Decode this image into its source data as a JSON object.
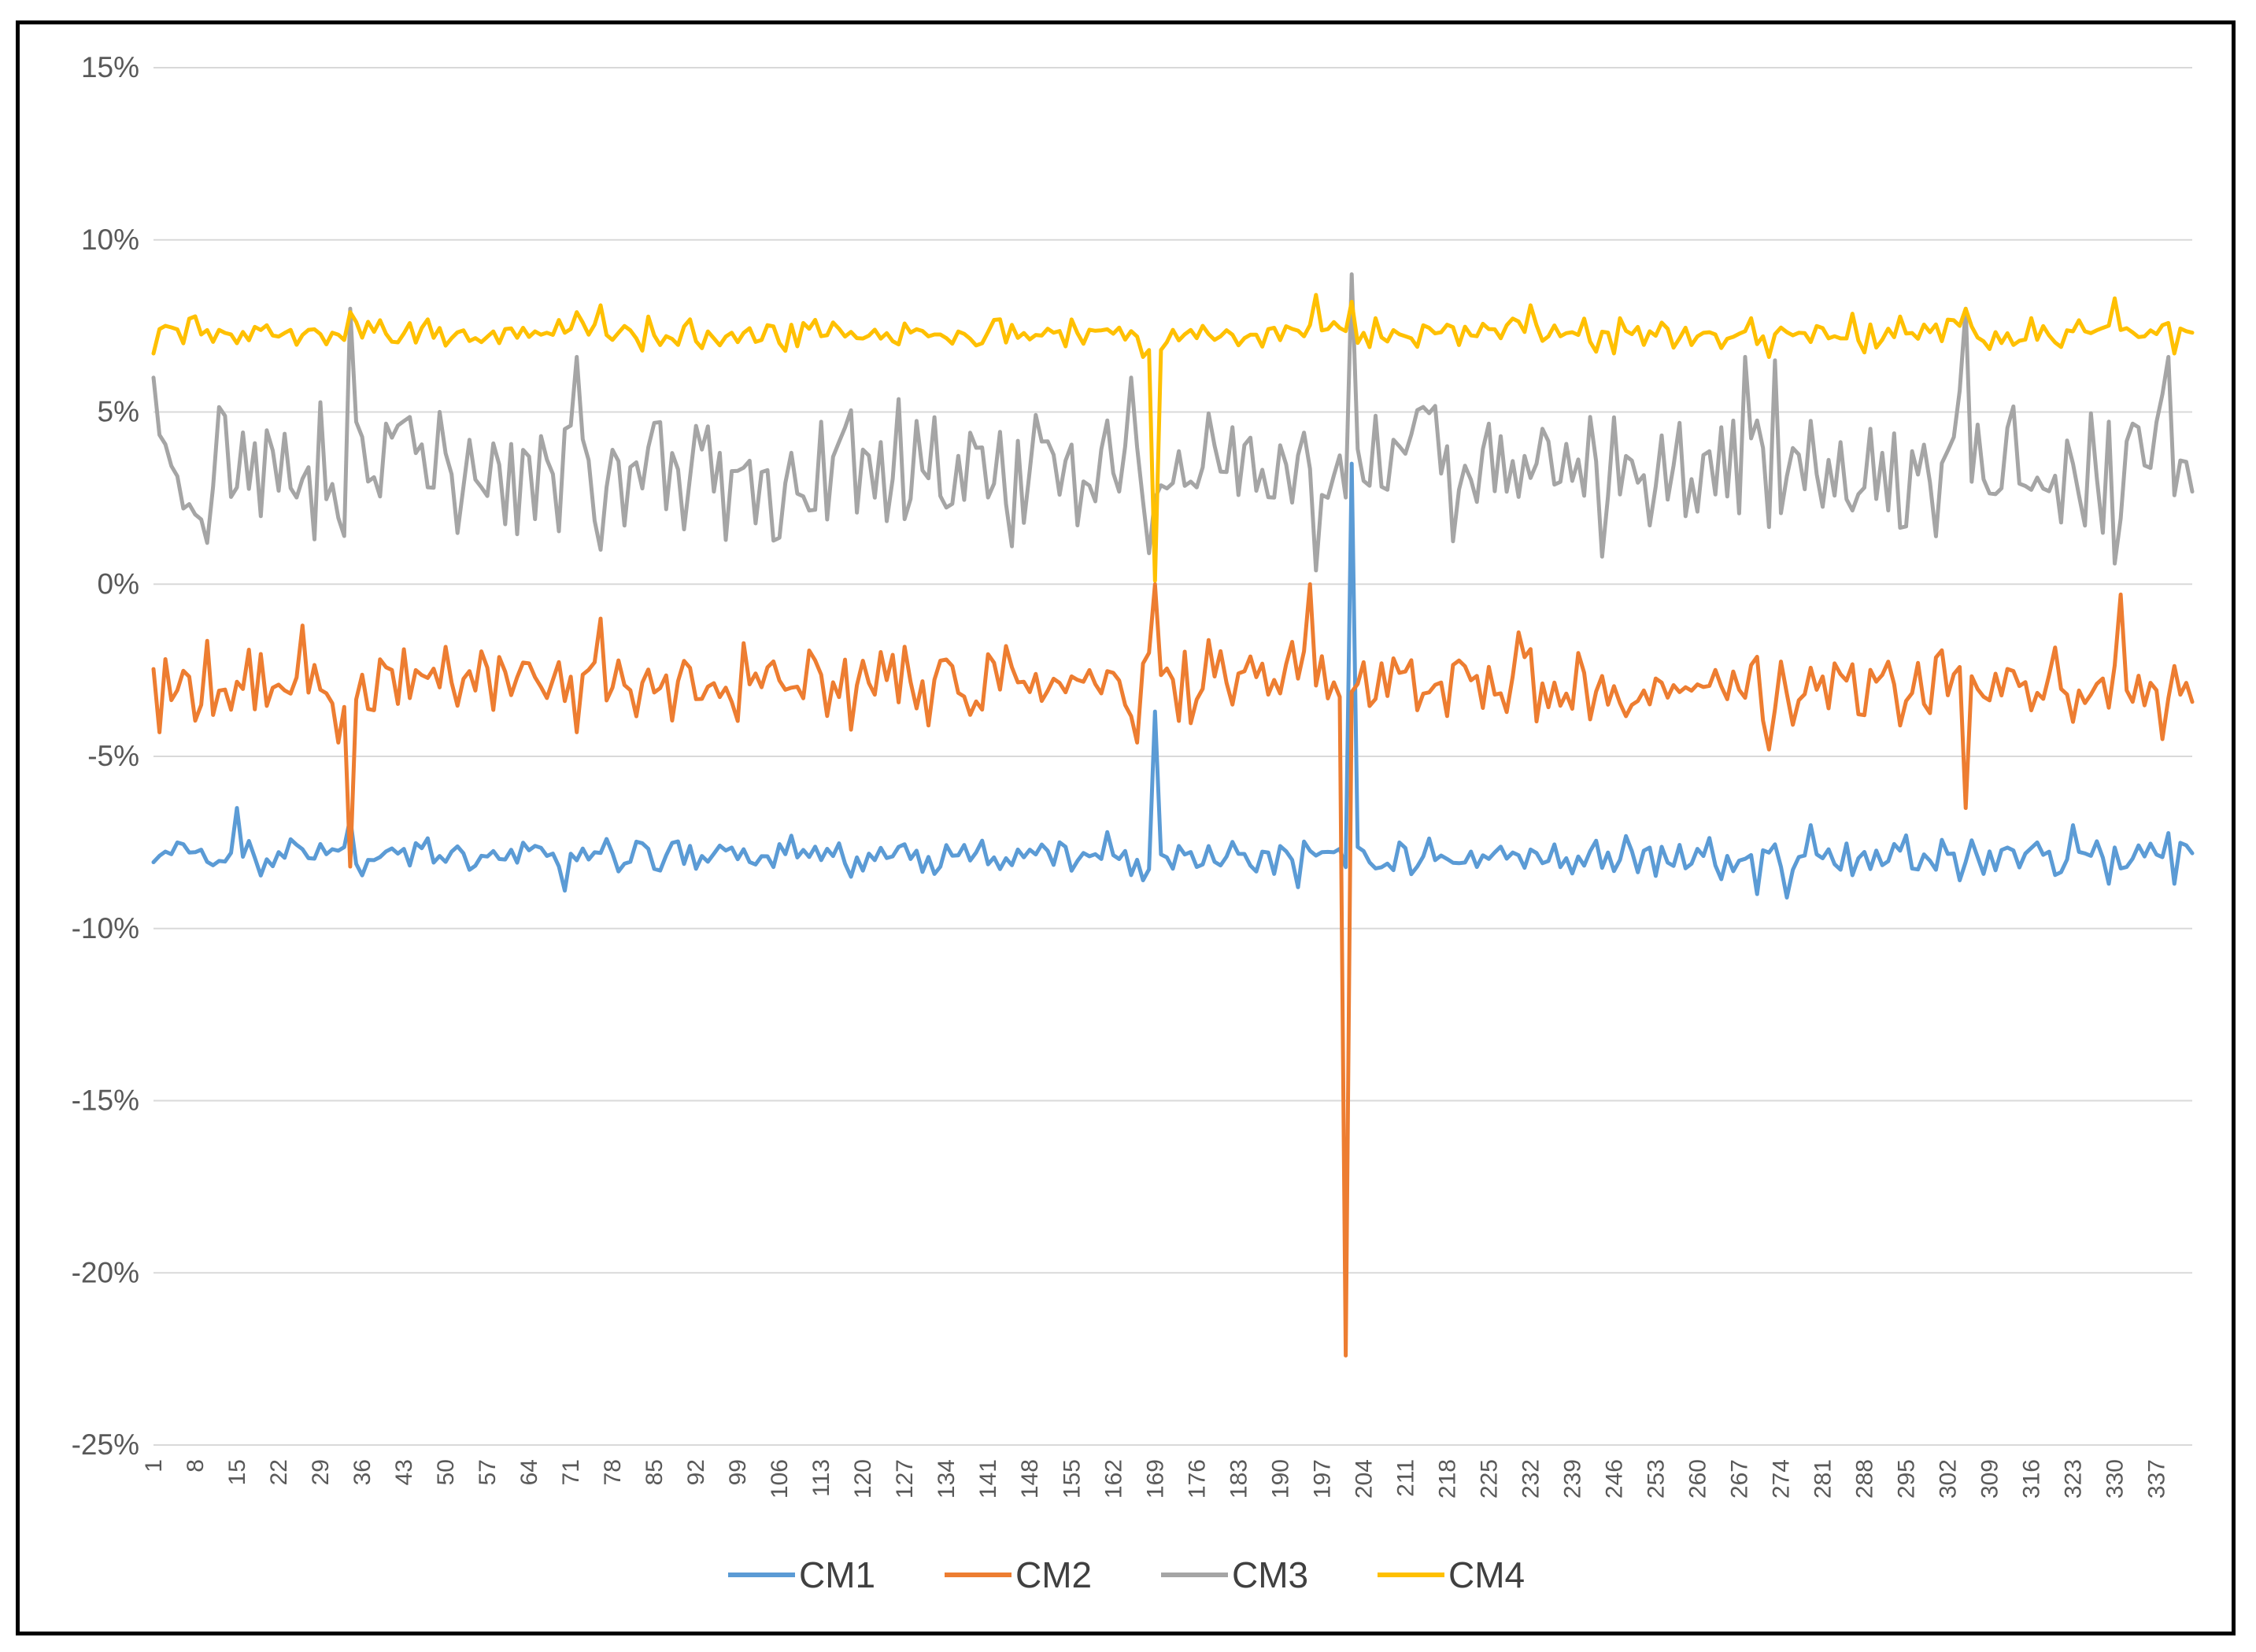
{
  "chart_data": {
    "type": "line",
    "title": "",
    "xlabel": "",
    "ylabel": "",
    "ylim": [
      -25,
      15
    ],
    "y_ticks": [
      "15%",
      "10%",
      "5%",
      "0%",
      "-5%",
      "-10%",
      "-15%",
      "-20%",
      "-25%"
    ],
    "x_range": [
      1,
      343
    ],
    "x_ticks": [
      "1",
      "8",
      "15",
      "22",
      "29",
      "36",
      "43",
      "50",
      "57",
      "64",
      "71",
      "78",
      "85",
      "92",
      "99",
      "106",
      "113",
      "120",
      "127",
      "134",
      "141",
      "148",
      "155",
      "162",
      "169",
      "176",
      "183",
      "190",
      "197",
      "204",
      "211",
      "218",
      "225",
      "232",
      "239",
      "246",
      "253",
      "260",
      "267",
      "274",
      "281",
      "288",
      "295",
      "302",
      "309",
      "316",
      "323",
      "330",
      "337"
    ],
    "grid": "horizontal",
    "legend_position": "bottom",
    "series": [
      {
        "name": "CM1",
        "color": "#5B9BD5",
        "base": -7.9,
        "noise": 0.35,
        "spikes": [
          [
            15,
            -6.5
          ],
          [
            34,
            -6.8
          ],
          [
            70,
            -8.9
          ],
          [
            167,
            -8.6
          ],
          [
            169,
            -3.7
          ],
          [
            193,
            -8.8
          ],
          [
            202,
            3.5
          ],
          [
            239,
            -8.4
          ],
          [
            270,
            -9.0
          ],
          [
            275,
            -9.1
          ],
          [
            279,
            -7.0
          ],
          [
            304,
            -8.6
          ],
          [
            323,
            -7.0
          ],
          [
            329,
            -8.7
          ],
          [
            340,
            -8.7
          ]
        ]
      },
      {
        "name": "CM2",
        "color": "#ED7D31",
        "base": -2.9,
        "noise": 0.7,
        "spikes": [
          [
            2,
            -4.3
          ],
          [
            26,
            -1.2
          ],
          [
            32,
            -4.6
          ],
          [
            34,
            -8.2
          ],
          [
            72,
            -4.3
          ],
          [
            76,
            -1.0
          ],
          [
            166,
            -4.6
          ],
          [
            169,
            0.0
          ],
          [
            195,
            0.0
          ],
          [
            201,
            -22.4
          ],
          [
            230,
            -1.4
          ],
          [
            272,
            -4.8
          ],
          [
            305,
            -6.5
          ],
          [
            331,
            -0.3
          ],
          [
            338,
            -4.5
          ]
        ]
      },
      {
        "name": "CM3",
        "color": "#A5A5A5",
        "base": 3.3,
        "noise": 1.2,
        "spikes": [
          [
            1,
            6.0
          ],
          [
            10,
            1.2
          ],
          [
            33,
            1.4
          ],
          [
            34,
            8.0
          ],
          [
            72,
            6.6
          ],
          [
            76,
            1.0
          ],
          [
            145,
            1.1
          ],
          [
            165,
            6.0
          ],
          [
            168,
            0.9
          ],
          [
            196,
            0.4
          ],
          [
            202,
            9.0
          ],
          [
            244,
            0.8
          ],
          [
            268,
            6.6
          ],
          [
            273,
            6.5
          ],
          [
            305,
            8.0
          ],
          [
            330,
            0.6
          ],
          [
            339,
            6.6
          ]
        ]
      },
      {
        "name": "CM4",
        "color": "#FFC000",
        "base": 7.3,
        "noise": 0.28,
        "spikes": [
          [
            1,
            6.7
          ],
          [
            34,
            7.9
          ],
          [
            72,
            7.9
          ],
          [
            76,
            8.1
          ],
          [
            167,
            6.6
          ],
          [
            169,
            0.1
          ],
          [
            170,
            6.8
          ],
          [
            196,
            8.4
          ],
          [
            202,
            8.2
          ],
          [
            232,
            8.1
          ],
          [
            272,
            6.6
          ],
          [
            305,
            8.0
          ],
          [
            330,
            8.3
          ],
          [
            340,
            6.7
          ]
        ]
      }
    ]
  }
}
